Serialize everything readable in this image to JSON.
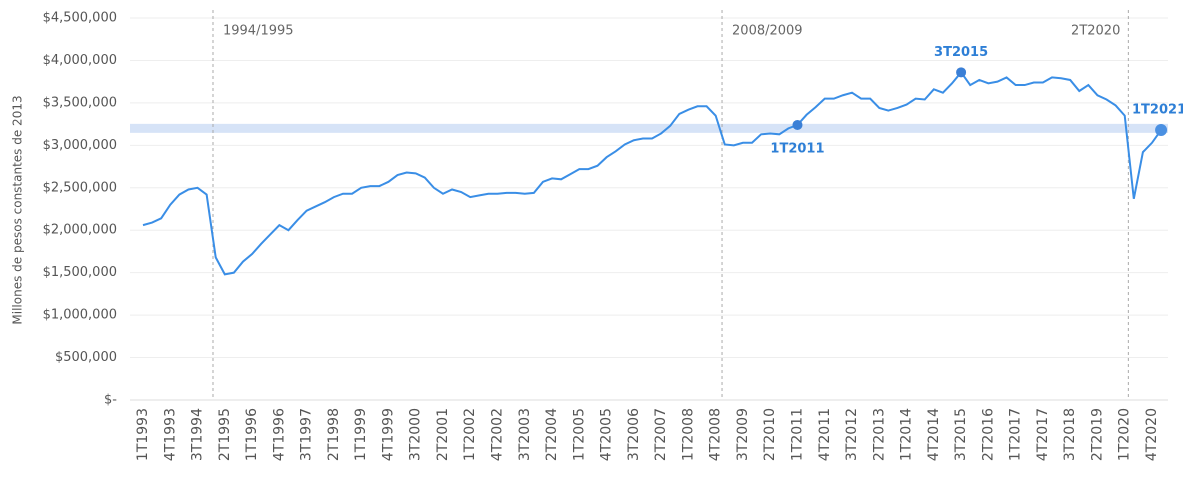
{
  "chart_data": {
    "type": "line",
    "y_label": "Millones de pesos constantes de 2013",
    "categories": [
      "1T1993",
      null,
      null,
      "4T1993",
      null,
      null,
      "3T1994",
      null,
      null,
      "2T1995",
      null,
      null,
      "1T1996",
      null,
      null,
      "4T1996",
      null,
      null,
      "3T1997",
      null,
      null,
      "2T1998",
      null,
      null,
      "1T1999",
      null,
      null,
      "4T1999",
      null,
      null,
      "3T2000",
      null,
      null,
      "2T2001",
      null,
      null,
      "1T2002",
      null,
      null,
      "4T2002",
      null,
      null,
      "3T2003",
      null,
      null,
      "2T2004",
      null,
      null,
      "1T2005",
      null,
      null,
      "4T2005",
      null,
      null,
      "3T2006",
      null,
      null,
      "2T2007",
      null,
      null,
      "1T2008",
      null,
      null,
      "4T2008",
      null,
      null,
      "3T2009",
      null,
      null,
      "2T2010",
      null,
      null,
      "1T2011",
      null,
      null,
      "4T2011",
      null,
      null,
      "3T2012",
      null,
      null,
      "2T2013",
      null,
      null,
      "1T2014",
      null,
      null,
      "4T2014",
      null,
      null,
      "3T2015",
      null,
      null,
      "2T2016",
      null,
      null,
      "1T2017",
      null,
      null,
      "4T2017",
      null,
      null,
      "3T2018",
      null,
      null,
      "2T2019",
      null,
      null,
      "1T2020",
      null,
      null,
      "4T2020",
      null
    ],
    "values": [
      2060000,
      2090000,
      2140000,
      2300000,
      2420000,
      2480000,
      2500000,
      2420000,
      1680000,
      1480000,
      1500000,
      1630000,
      1720000,
      1840000,
      1950000,
      2060000,
      2000000,
      2120000,
      2230000,
      2280000,
      2330000,
      2390000,
      2430000,
      2430000,
      2500000,
      2520000,
      2520000,
      2570000,
      2650000,
      2680000,
      2670000,
      2620000,
      2500000,
      2430000,
      2480000,
      2450000,
      2390000,
      2410000,
      2430000,
      2430000,
      2440000,
      2440000,
      2430000,
      2440000,
      2570000,
      2610000,
      2600000,
      2660000,
      2720000,
      2720000,
      2760000,
      2860000,
      2930000,
      3010000,
      3060000,
      3080000,
      3080000,
      3140000,
      3230000,
      3370000,
      3420000,
      3460000,
      3460000,
      3350000,
      3010000,
      3000000,
      3030000,
      3030000,
      3130000,
      3140000,
      3130000,
      3200000,
      3240000,
      3360000,
      3450000,
      3550000,
      3550000,
      3590000,
      3620000,
      3550000,
      3550000,
      3440000,
      3410000,
      3440000,
      3480000,
      3550000,
      3540000,
      3660000,
      3620000,
      3730000,
      3860000,
      3710000,
      3770000,
      3730000,
      3750000,
      3800000,
      3710000,
      3710000,
      3740000,
      3740000,
      3800000,
      3790000,
      3770000,
      3640000,
      3710000,
      3590000,
      3540000,
      3470000,
      3350000,
      2370000,
      2920000,
      3030000,
      3180000
    ],
    "color": "#3a8ee6",
    "reference_band": 3200000,
    "ylim": [
      0,
      4500000
    ],
    "yticks": [
      {
        "value": 0,
        "label": "$-"
      },
      {
        "value": 500000,
        "label": "$500,000"
      },
      {
        "value": 1000000,
        "label": "$1,000,000"
      },
      {
        "value": 1500000,
        "label": "$1,500,000"
      },
      {
        "value": 2000000,
        "label": "$2,000,000"
      },
      {
        "value": 2500000,
        "label": "$2,500,000"
      },
      {
        "value": 3000000,
        "label": "$3,000,000"
      },
      {
        "value": 3500000,
        "label": "$3,500,000"
      },
      {
        "value": 4000000,
        "label": "$4,000,000"
      },
      {
        "value": 4500000,
        "label": "$4,500,000"
      }
    ],
    "grid": true,
    "annotations": [
      {
        "label": "1994/1995",
        "x": 7.7
      },
      {
        "label": "2008/2009",
        "x": 63.7
      },
      {
        "label": "2T2020",
        "x": 108.4
      }
    ],
    "highlights": [
      {
        "label": "1T2011",
        "index": 72
      },
      {
        "label": "3T2015",
        "index": 90
      },
      {
        "label": "1T2021",
        "index": 112
      }
    ]
  }
}
